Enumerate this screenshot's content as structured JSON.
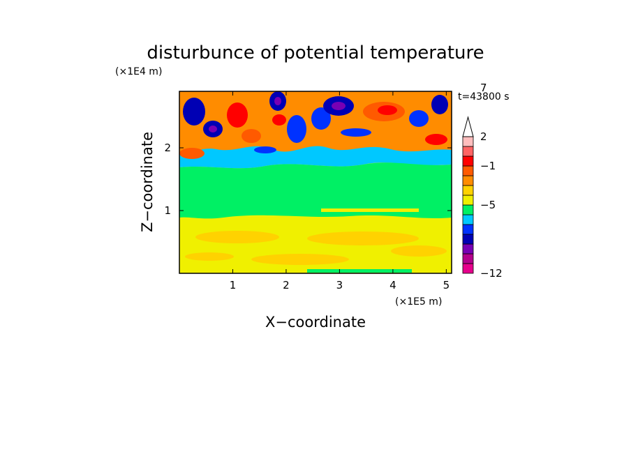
{
  "chart_data": {
    "type": "heatmap",
    "title": "disturbunce of potential temperature",
    "xlabel": "X−coordinate",
    "ylabel": "Z−coordinate",
    "x_scale_label": "(×1E5 m)",
    "y_scale_label": "(×1E4 m)",
    "time_label": "t=43800 s",
    "xlim": [
      0,
      5.1
    ],
    "ylim": [
      0,
      2.9
    ],
    "x_ticks": [
      "1",
      "2",
      "3",
      "4",
      "5"
    ],
    "x_tick_values": [
      1,
      2,
      3,
      4,
      5
    ],
    "y_ticks": [
      "1",
      "2"
    ],
    "y_tick_values": [
      1,
      2
    ],
    "colorbar": {
      "extend_max": true,
      "colors": [
        "#e6008c",
        "#b4008c",
        "#7800b4",
        "#0000b4",
        "#0032ff",
        "#00c8ff",
        "#00f064",
        "#f0f000",
        "#ffd200",
        "#ff8c00",
        "#ff5a00",
        "#ff0000",
        "#ff6464",
        "#ffbebe"
      ],
      "labels": [
        {
          "text": "7",
          "level": 7
        },
        {
          "text": "2",
          "level": 2
        },
        {
          "text": "−1",
          "level": -1
        },
        {
          "text": "−5",
          "level": -5
        },
        {
          "text": "−12",
          "level": -12
        }
      ]
    },
    "grid": false
  }
}
